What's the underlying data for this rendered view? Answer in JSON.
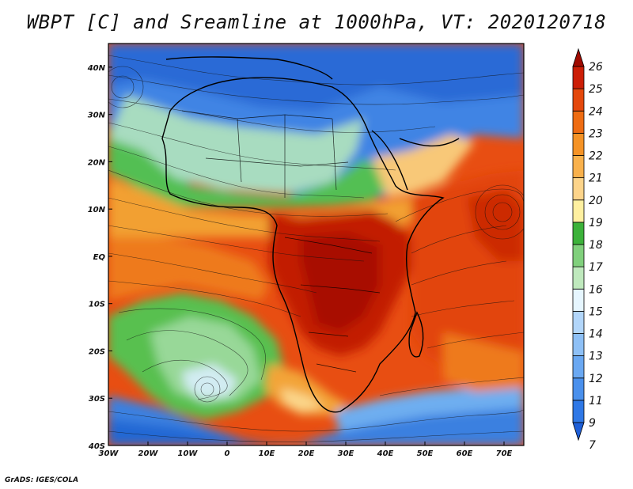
{
  "title": "WBPT [C] and Sreamline at 1000hPa, VT: 2020120718",
  "credit": "GrADS: IGES/COLA",
  "map": {
    "lon_range": [
      -30,
      75
    ],
    "lat_range": [
      -40,
      45
    ],
    "lon_ticks": [
      {
        "value": -30,
        "label": "30W"
      },
      {
        "value": -20,
        "label": "20W"
      },
      {
        "value": -10,
        "label": "10W"
      },
      {
        "value": 0,
        "label": "0"
      },
      {
        "value": 10,
        "label": "10E"
      },
      {
        "value": 20,
        "label": "20E"
      },
      {
        "value": 30,
        "label": "30E"
      },
      {
        "value": 40,
        "label": "40E"
      },
      {
        "value": 50,
        "label": "50E"
      },
      {
        "value": 60,
        "label": "60E"
      },
      {
        "value": 70,
        "label": "70E"
      }
    ],
    "lat_ticks": [
      {
        "value": 40,
        "label": "40N"
      },
      {
        "value": 30,
        "label": "30N"
      },
      {
        "value": 20,
        "label": "20N"
      },
      {
        "value": 10,
        "label": "10N"
      },
      {
        "value": 0,
        "label": "EQ"
      },
      {
        "value": -10,
        "label": "10S"
      },
      {
        "value": -20,
        "label": "20S"
      },
      {
        "value": -30,
        "label": "30S"
      },
      {
        "value": -40,
        "label": "40S"
      }
    ]
  },
  "colorbar": {
    "levels": [
      "7",
      "9",
      "11",
      "12",
      "13",
      "14",
      "15",
      "16",
      "17",
      "18",
      "19",
      "20",
      "21",
      "22",
      "23",
      "24",
      "25",
      "26"
    ],
    "colors": [
      "#1e5fd8",
      "#2f78e6",
      "#4a90ec",
      "#6aa8f2",
      "#8ec0f6",
      "#b2d6fa",
      "#e6f6ff",
      "#bfe9bd",
      "#80d07c",
      "#3cb23a",
      "#fff0a0",
      "#fdd48a",
      "#f9b14c",
      "#f59326",
      "#ee6c12",
      "#e4480c",
      "#cc1e06",
      "#a00a00"
    ]
  }
}
